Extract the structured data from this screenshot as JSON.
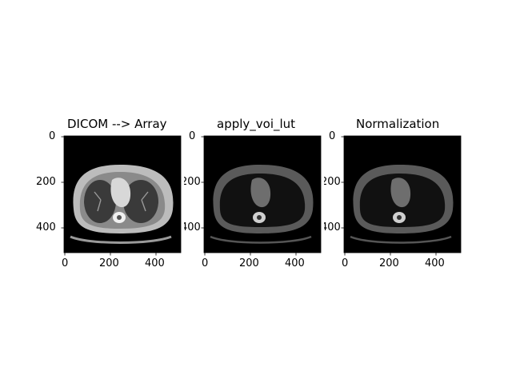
{
  "panels": [
    {
      "title": "DICOM --> Array",
      "image_subject": "axial chest CT slice (bone window, lung vessels visible)",
      "y_ticks": [
        "0",
        "200",
        "400"
      ],
      "x_ticks": [
        "0",
        "200",
        "400"
      ]
    },
    {
      "title": "apply_voi_lut",
      "image_subject": "axial chest CT slice (soft-tissue window, lungs dark)",
      "y_ticks": [
        "0",
        "200",
        "400"
      ],
      "x_ticks": [
        "0",
        "200",
        "400"
      ]
    },
    {
      "title": "Normalization",
      "image_subject": "axial chest CT slice (normalized, lungs dark)",
      "y_ticks": [
        "0",
        "200",
        "400"
      ],
      "x_ticks": [
        "0",
        "200",
        "400"
      ]
    }
  ],
  "colors": {
    "background": "#ffffff",
    "image_background": "#000000",
    "axis": "#000000"
  }
}
